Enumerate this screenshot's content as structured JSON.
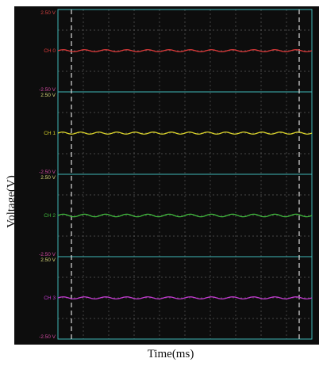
{
  "chart_data": {
    "type": "line",
    "xlabel": "Time(ms)",
    "ylabel": "Voltage(V)",
    "grid": true,
    "channels": [
      {
        "name": "CH 0",
        "color": "#e03a3a",
        "ymax_label": "2.50 V",
        "ymin_label": "-2.50 V",
        "ylim": [
          -2.5,
          2.5
        ],
        "offset": 0.0,
        "amplitude": 0.06,
        "cycles": 12
      },
      {
        "name": "CH 1",
        "color": "#d9d22a",
        "ymax_label": "2.50 V",
        "ymin_label": "-2.50 V",
        "ylim": [
          -2.5,
          2.5
        ],
        "offset": 0.0,
        "amplitude": 0.06,
        "cycles": 14
      },
      {
        "name": "CH 2",
        "color": "#3fb83c",
        "ymax_label": "2.50 V",
        "ymin_label": "-2.50 V",
        "ylim": [
          -2.5,
          2.5
        ],
        "offset": 0.0,
        "amplitude": 0.08,
        "cycles": 12
      },
      {
        "name": "CH 3",
        "color": "#c23ad0",
        "ymax_label": "2.50 V",
        "ymin_label": "-2.50 V",
        "ylim": [
          -2.5,
          2.5
        ],
        "offset": 0.0,
        "amplitude": 0.06,
        "cycles": 12
      }
    ],
    "colors": {
      "background": "#0d0d0d",
      "frame": "#3fb8b8",
      "grid": "#5a5a5a",
      "cursor": "#dddddd",
      "scale_text": "#d04040"
    }
  }
}
